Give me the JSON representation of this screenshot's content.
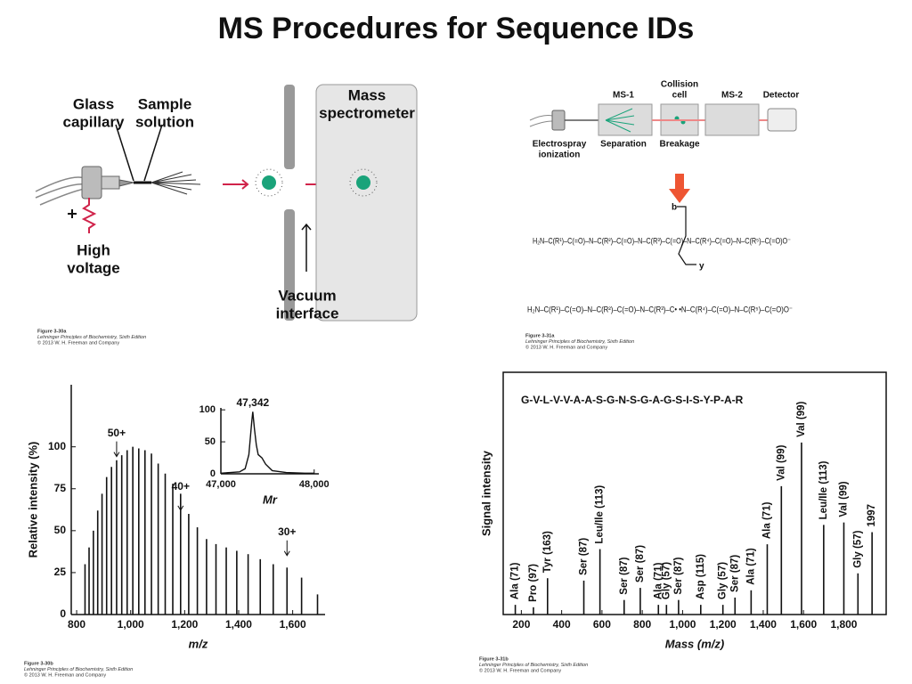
{
  "title": "MS Procedures for Sequence IDs",
  "figures": [
    {
      "labels": [
        [
          "Glass",
          "capillary"
        ],
        [
          "Sample",
          "solution"
        ],
        [
          "High",
          "voltage"
        ],
        [
          "Mass",
          "spectrometer"
        ],
        [
          "Vacuum",
          "interface"
        ]
      ],
      "caption": [
        "Figure 3-30a",
        "Lehninger Principles of Biochemistry, Sixth Edition",
        "© 2013 W. H. Freeman and Company"
      ]
    },
    {
      "labels": [
        [
          "MS-1"
        ],
        [
          "Collision",
          "cell"
        ],
        [
          "MS-2"
        ],
        [
          "Detector"
        ],
        [
          "Electrospray",
          "ionization"
        ],
        [
          "Separation"
        ],
        [
          "Breakage"
        ]
      ],
      "structures": [
        "H₂N–C(R¹)–C(=O)–N–C(R²)–C(=O)–N–C(R³)–C(=O)–N–C(R⁴)–C(=O)–N–C(R⁵)–C(=O)O⁻",
        "H₂N–C(R¹)–C(=O)–N–C(R²)–C(=O)–N–C(R³)–C•    •N–C(R⁴)–C(=O)–N–C(R⁵)–C(=O)O⁻"
      ],
      "fragments": [
        "b",
        "y"
      ],
      "caption": [
        "Figure 3-31a",
        "Lehninger Principles of Biochemistry, Sixth Edition",
        "© 2013 W. H. Freeman and Company"
      ]
    }
  ],
  "chart_data": [
    {
      "type": "bar",
      "x_label": "m/z",
      "y_label": "Relative intensity (%)",
      "x": [
        831,
        846,
        862,
        878,
        894,
        911,
        929,
        948,
        967,
        987,
        1008,
        1030,
        1053,
        1077,
        1102,
        1128,
        1156,
        1185,
        1215,
        1247,
        1281,
        1316,
        1354,
        1393,
        1435,
        1480,
        1528,
        1579,
        1633,
        1692
      ],
      "values": [
        30,
        40,
        50,
        62,
        72,
        82,
        88,
        92,
        95,
        98,
        100,
        99,
        98,
        96,
        90,
        84,
        78,
        72,
        60,
        52,
        45,
        42,
        40,
        38,
        36,
        33,
        30,
        28,
        22,
        12
      ],
      "color": "#111111",
      "xlim": [
        780,
        1720
      ],
      "ylim": [
        0,
        137
      ],
      "xticks": [
        800,
        {
          "value": 1000,
          "label": "1,000"
        },
        {
          "value": 1200,
          "label": "1,200"
        },
        {
          "value": 1400,
          "label": "1,400"
        },
        {
          "value": 1600,
          "label": "1,600"
        }
      ],
      "yticks": [
        0,
        25,
        50,
        75,
        100
      ],
      "annotations": [
        {
          "text": "50+",
          "x": 948,
          "y": 108
        },
        {
          "text": "40+",
          "x": 1185,
          "y": 76
        },
        {
          "text": "30+",
          "x": 1579,
          "y": 49
        }
      ],
      "caption": [
        "Figure 3-30b",
        "Lehninger Principles of Biochemistry, Sixth Edition",
        "© 2013 W. H. Freeman and Company"
      ]
    },
    {
      "type": "line",
      "x_label": "Mr",
      "x": [
        47000,
        47100,
        47200,
        47260,
        47300,
        47330,
        47342,
        47360,
        47380,
        47400,
        47440,
        47480,
        47550,
        47700,
        47900,
        48000
      ],
      "values": [
        1,
        2,
        3,
        8,
        30,
        80,
        97,
        70,
        45,
        30,
        25,
        15,
        5,
        2,
        1,
        1
      ],
      "color": "#111111",
      "xlim": [
        47000,
        48050
      ],
      "ylim": [
        0,
        103
      ],
      "xticks": [
        {
          "value": 47000,
          "label": "47,000"
        },
        {
          "value": 48000,
          "label": "48,000"
        }
      ],
      "yticks": [
        0,
        50,
        100
      ],
      "annotations": [
        {
          "text": "47,342",
          "x": 47342,
          "y": 110
        }
      ]
    },
    {
      "type": "bar",
      "subtitle": "G-V-L-V-V-A-A-S-G-N-S-G-A-G-S-I-S-Y-P-A-R",
      "x_label": "Mass (m/z)",
      "y_label": "Signal intensity",
      "frame": true,
      "x": [
        170,
        260,
        330,
        510,
        590,
        710,
        790,
        880,
        920,
        980,
        1090,
        1200,
        1260,
        1340,
        1420,
        1490,
        1590,
        1700,
        1800,
        1870,
        1940
      ],
      "values": [
        4,
        3,
        15,
        14,
        27,
        6,
        11,
        4,
        4,
        6,
        4,
        4,
        7,
        10,
        29,
        53,
        71,
        37,
        38,
        17,
        34
      ],
      "peak_labels": [
        "Ala (71)",
        "Pro (97)",
        "Tyr (163)",
        "Ser (87)",
        "Leu/Ile (113)",
        "Ser (87)",
        "Ser (87)",
        "Ala (71)",
        "Gly (57)",
        "Ser (87)",
        "Asp (115)",
        "Gly (57)",
        "Ser (87)",
        "Ala (71)",
        "Ala (71)",
        "Val (99)",
        "Val (99)",
        "Leu/Ile (113)",
        "Val (99)",
        "Gly (57)",
        "1997"
      ],
      "color": "#111111",
      "xlim": [
        110,
        2010
      ],
      "ylim": [
        0,
        100
      ],
      "xticks": [
        200,
        400,
        600,
        800,
        {
          "value": 1000,
          "label": "1,000"
        },
        {
          "value": 1200,
          "label": "1,200"
        },
        {
          "value": 1400,
          "label": "1,400"
        },
        {
          "value": 1600,
          "label": "1,600"
        },
        {
          "value": 1800,
          "label": "1,800"
        }
      ],
      "caption": [
        "Figure 3-31b",
        "Lehninger Principles of Biochemistry, Sixth Edition",
        "© 2013 W. H. Freeman and Company"
      ]
    }
  ]
}
